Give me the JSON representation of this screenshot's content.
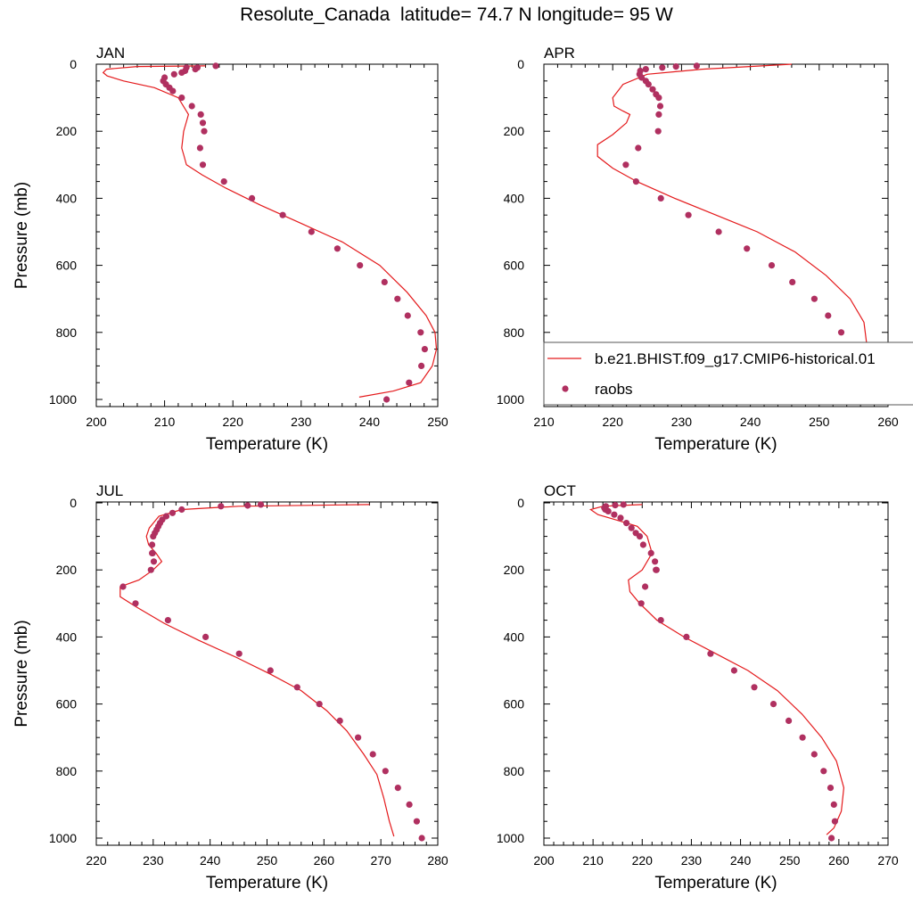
{
  "title": "Resolute_Canada  latitude= 74.7 N longitude= 95 W",
  "colors": {
    "model": "#e41a1c",
    "obs": "#b03060",
    "axis": "#000000"
  },
  "legend": {
    "model_label": "b.e21.BHIST.f09_g17.CMIP6-historical.01",
    "obs_label": "raobs"
  },
  "chart_data": [
    {
      "type": "line",
      "panel": "JAN",
      "xlabel": "Temperature (K)",
      "ylabel": "Pressure (mb)",
      "xlim": [
        200,
        250
      ],
      "ylim": [
        1000,
        0
      ],
      "xticks": [
        200,
        210,
        220,
        230,
        240,
        250
      ],
      "yticks": [
        0,
        200,
        400,
        600,
        800,
        1000
      ],
      "series": [
        {
          "kind": "line",
          "name": "b.e21.BHIST.f09_g17.CMIP6-historical.01",
          "x": [
            216.0,
            206.0,
            201.5,
            201.0,
            201.6,
            204.0,
            208.5,
            212.0,
            213.5,
            212.8,
            212.5,
            212.8,
            213.2,
            215.5,
            219.0,
            224.0,
            230.0,
            236.0,
            241.5,
            245.5,
            248.3,
            249.6,
            249.8,
            249.2,
            247.5,
            243.5,
            238.5
          ],
          "y": [
            5,
            7,
            15,
            25,
            35,
            50,
            70,
            100,
            150,
            200,
            250,
            270,
            300,
            330,
            370,
            420,
            475,
            530,
            600,
            680,
            750,
            800,
            850,
            900,
            950,
            975,
            993
          ]
        },
        {
          "kind": "scatter",
          "name": "raobs",
          "x": [
            217.5,
            214.8,
            214.5,
            213.0,
            213.2,
            212.5,
            211.4,
            210.0,
            209.8,
            210.2,
            210.7,
            211.2,
            212.5,
            214.0,
            215.3,
            215.6,
            215.8,
            215.2,
            215.6,
            218.7,
            222.8,
            227.3,
            231.5,
            235.3,
            238.6,
            242.2,
            244.1,
            245.6,
            247.5,
            248.1,
            247.6,
            245.8,
            242.5
          ],
          "y": [
            5,
            10,
            15,
            20,
            10,
            25,
            30,
            40,
            50,
            60,
            70,
            80,
            100,
            125,
            150,
            175,
            200,
            250,
            300,
            350,
            400,
            450,
            500,
            550,
            600,
            650,
            700,
            750,
            800,
            850,
            900,
            950,
            1000
          ]
        }
      ]
    },
    {
      "type": "line",
      "panel": "APR",
      "xlabel": "Temperature (K)",
      "ylabel": "",
      "xlim": [
        210,
        260
      ],
      "ylim": [
        1000,
        0
      ],
      "xticks": [
        210,
        220,
        230,
        240,
        250,
        260
      ],
      "yticks": [
        0,
        200,
        400,
        600,
        800,
        1000
      ],
      "series": [
        {
          "kind": "line",
          "name": "b.e21.BHIST.f09_g17.CMIP6-historical.01",
          "x": [
            246.0,
            233.0,
            225.0,
            221.5,
            220.0,
            220.2,
            221.5,
            222.5,
            222.0,
            220.0,
            217.8,
            217.8,
            220.0,
            223.5,
            229.0,
            235.0,
            241.0,
            246.5,
            251.0,
            254.5,
            256.5,
            257.0,
            256.5,
            255.0,
            252.0
          ],
          "y": [
            0,
            15,
            30,
            60,
            100,
            125,
            140,
            150,
            175,
            210,
            240,
            275,
            310,
            350,
            400,
            450,
            500,
            560,
            630,
            700,
            770,
            850,
            910,
            960,
            995
          ]
        },
        {
          "kind": "scatter",
          "name": "raobs",
          "x": [
            232.2,
            229.2,
            227.2,
            224.8,
            224.0,
            223.9,
            224.2,
            224.8,
            225.2,
            225.8,
            226.3,
            226.7,
            226.9,
            226.7,
            226.6,
            223.7,
            221.9,
            223.4,
            227.0,
            231.0,
            235.4,
            239.5,
            243.1,
            246.1,
            249.3,
            251.3,
            253.2,
            254.0,
            254.3,
            253.5,
            251.0
          ],
          "y": [
            5,
            7,
            10,
            15,
            20,
            30,
            40,
            50,
            60,
            75,
            90,
            100,
            125,
            150,
            200,
            250,
            300,
            350,
            400,
            450,
            500,
            550,
            600,
            650,
            700,
            750,
            800,
            850,
            900,
            950,
            1000
          ]
        }
      ]
    },
    {
      "type": "line",
      "panel": "JUL",
      "xlabel": "Temperature (K)",
      "ylabel": "Pressure (mb)",
      "xlim": [
        220,
        280
      ],
      "ylim": [
        1000,
        0
      ],
      "xticks": [
        220,
        230,
        240,
        250,
        260,
        270,
        280
      ],
      "yticks": [
        0,
        200,
        400,
        600,
        800,
        1000
      ],
      "series": [
        {
          "kind": "line",
          "name": "b.e21.BHIST.f09_g17.CMIP6-historical.01",
          "x": [
            268.0,
            245.0,
            235.0,
            231.0,
            229.3,
            228.8,
            229.2,
            230.5,
            231.5,
            230.0,
            227.5,
            224.2,
            224.2,
            227.0,
            232.0,
            238.0,
            244.5,
            250.5,
            256.0,
            260.5,
            264.0,
            267.0,
            269.3,
            270.5,
            271.5,
            272.3
          ],
          "y": [
            5,
            10,
            20,
            40,
            75,
            100,
            125,
            150,
            175,
            200,
            230,
            250,
            280,
            310,
            360,
            410,
            460,
            510,
            560,
            620,
            680,
            750,
            810,
            880,
            950,
            995
          ]
        },
        {
          "kind": "scatter",
          "name": "raobs",
          "x": [
            248.9,
            246.6,
            241.9,
            235.0,
            233.4,
            232.3,
            231.6,
            231.2,
            230.9,
            230.6,
            230.3,
            230.0,
            229.8,
            229.9,
            230.1,
            229.8,
            229.6,
            224.7,
            226.9,
            232.6,
            239.2,
            245.1,
            250.6,
            255.3,
            259.2,
            262.8,
            266.0,
            268.6,
            270.8,
            273.0,
            275.0,
            276.3,
            277.2
          ],
          "y": [
            5,
            8,
            10,
            20,
            30,
            40,
            50,
            60,
            70,
            80,
            90,
            100,
            125,
            150,
            175,
            150,
            200,
            250,
            300,
            350,
            400,
            450,
            500,
            550,
            600,
            650,
            700,
            750,
            800,
            850,
            900,
            950,
            1000
          ]
        }
      ]
    },
    {
      "type": "line",
      "panel": "OCT",
      "xlabel": "Temperature (K)",
      "ylabel": "",
      "xlim": [
        200,
        270
      ],
      "ylim": [
        1000,
        0
      ],
      "xticks": [
        200,
        210,
        220,
        230,
        240,
        250,
        260,
        270
      ],
      "yticks": [
        0,
        200,
        400,
        600,
        800,
        1000
      ],
      "series": [
        {
          "kind": "line",
          "name": "b.e21.BHIST.f09_g17.CMIP6-historical.01",
          "x": [
            220.0,
            212.0,
            209.5,
            211.0,
            214.5,
            219.0,
            221.0,
            222.0,
            220.0,
            217.2,
            217.5,
            219.5,
            223.0,
            228.5,
            235.0,
            241.5,
            247.5,
            252.5,
            256.5,
            259.5,
            261.0,
            260.5,
            259.0,
            257.5
          ],
          "y": [
            5,
            10,
            20,
            35,
            50,
            70,
            100,
            150,
            200,
            230,
            265,
            300,
            350,
            400,
            450,
            500,
            560,
            630,
            700,
            770,
            850,
            920,
            970,
            990
          ]
        },
        {
          "kind": "scatter",
          "name": "raobs",
          "x": [
            216.2,
            214.5,
            212.6,
            212.3,
            212.5,
            213.1,
            214.3,
            215.6,
            216.8,
            217.8,
            218.7,
            219.5,
            220.2,
            221.8,
            222.6,
            222.8,
            222.9,
            220.6,
            219.8,
            223.8,
            229.0,
            233.9,
            238.7,
            242.8,
            246.7,
            249.8,
            252.6,
            255.0,
            256.9,
            258.3,
            259.0,
            259.2,
            258.5
          ],
          "y": [
            5,
            7,
            10,
            15,
            20,
            25,
            35,
            45,
            60,
            75,
            90,
            100,
            125,
            150,
            175,
            200,
            200,
            250,
            300,
            350,
            400,
            450,
            500,
            550,
            600,
            650,
            700,
            750,
            800,
            850,
            900,
            950,
            1000
          ]
        }
      ]
    }
  ]
}
